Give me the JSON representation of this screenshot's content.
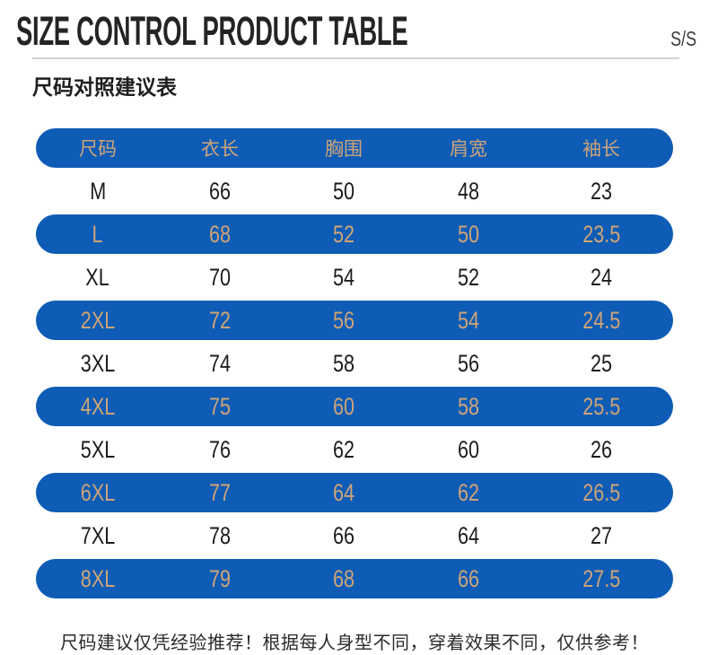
{
  "header": {
    "title": "SIZE CONTROL PRODUCT TABLE",
    "season_label": "S/S",
    "subtitle": "尺码对照建议表"
  },
  "table": {
    "columns": [
      "尺码",
      "衣长",
      "胸围",
      "肩宽",
      "袖长"
    ],
    "rows": [
      {
        "size": "M",
        "values": [
          "66",
          "50",
          "48",
          "23"
        ],
        "highlight": false
      },
      {
        "size": "L",
        "values": [
          "68",
          "52",
          "50",
          "23.5"
        ],
        "highlight": true
      },
      {
        "size": "XL",
        "values": [
          "70",
          "54",
          "52",
          "24"
        ],
        "highlight": false
      },
      {
        "size": "2XL",
        "values": [
          "72",
          "56",
          "54",
          "24.5"
        ],
        "highlight": true
      },
      {
        "size": "3XL",
        "values": [
          "74",
          "58",
          "56",
          "25"
        ],
        "highlight": false
      },
      {
        "size": "4XL",
        "values": [
          "75",
          "60",
          "58",
          "25.5"
        ],
        "highlight": true
      },
      {
        "size": "5XL",
        "values": [
          "76",
          "62",
          "60",
          "26"
        ],
        "highlight": false
      },
      {
        "size": "6XL",
        "values": [
          "77",
          "64",
          "62",
          "26.5"
        ],
        "highlight": true
      },
      {
        "size": "7XL",
        "values": [
          "78",
          "66",
          "64",
          "27"
        ],
        "highlight": false
      },
      {
        "size": "8XL",
        "values": [
          "79",
          "68",
          "66",
          "27.5"
        ],
        "highlight": true
      }
    ]
  },
  "footer": {
    "note": "尺码建议仅凭经验推荐！根据每人身型不同，穿着效果不同，仅供参考！"
  },
  "colors": {
    "row_highlight_blue": "#0e5cb5",
    "highlight_text_tan": "#cfa477",
    "body_text": "#1c1c1c"
  }
}
